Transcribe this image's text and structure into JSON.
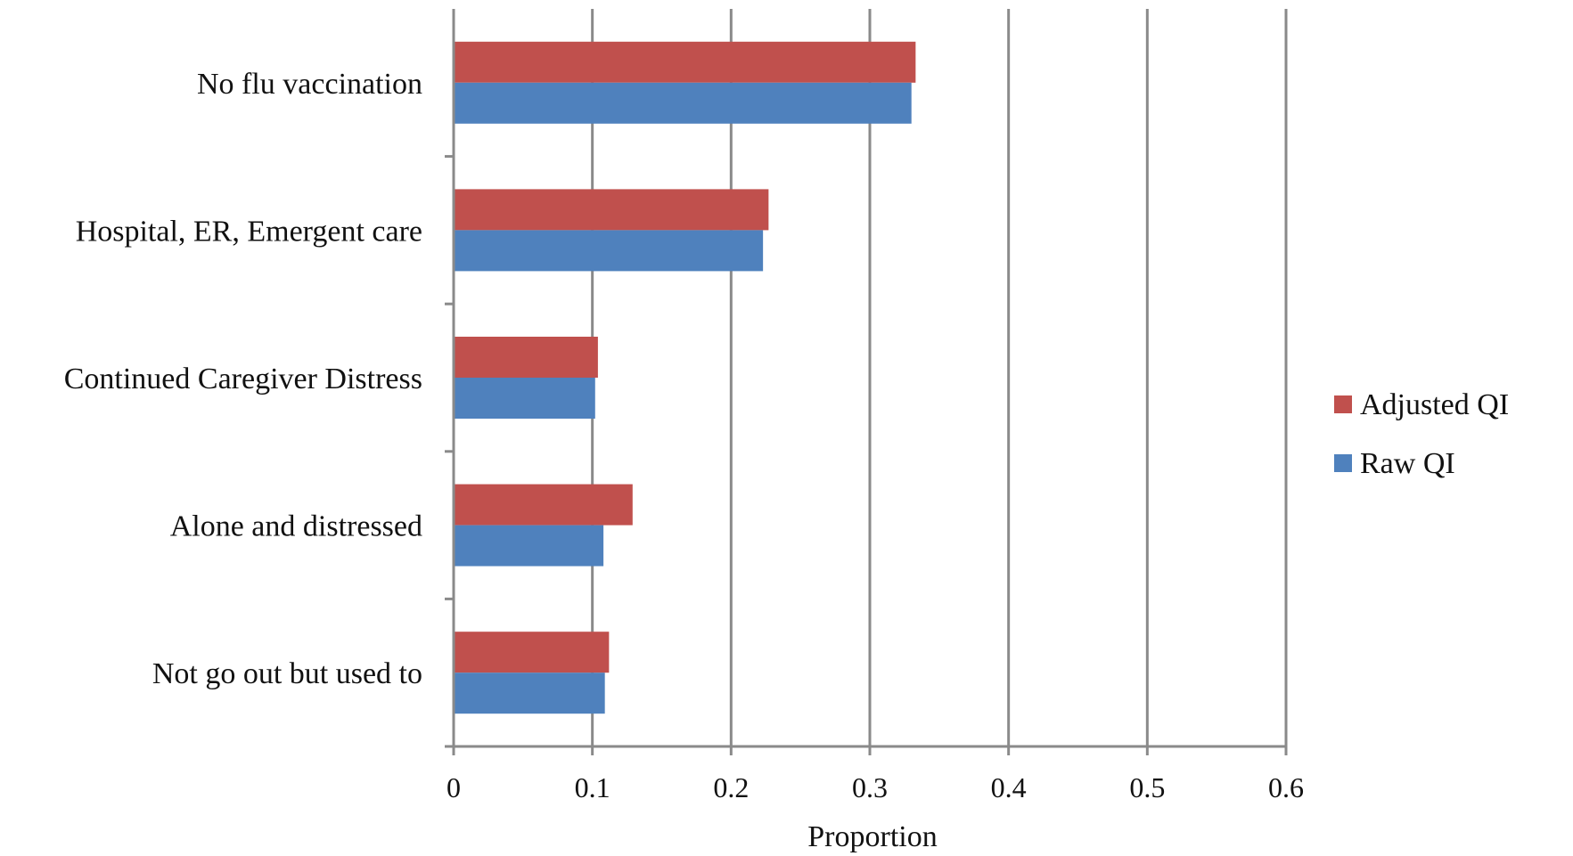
{
  "chart_data": {
    "type": "bar",
    "orientation": "horizontal",
    "categories": [
      "No flu vaccination",
      "Hospital, ER, Emergent care",
      "Continued Caregiver Distress",
      "Alone and distressed",
      "Not go out but used to"
    ],
    "series": [
      {
        "name": "Adjusted QI",
        "color": "#c0504d",
        "values": [
          0.333,
          0.227,
          0.104,
          0.129,
          0.112
        ]
      },
      {
        "name": "Raw QI",
        "color": "#4f81bd",
        "values": [
          0.33,
          0.223,
          0.102,
          0.108,
          0.109
        ]
      }
    ],
    "xlabel": "Proportion",
    "ylabel": "",
    "title": "",
    "xlim": [
      0,
      0.6
    ],
    "x_ticks": [
      "0",
      "0.1",
      "0.2",
      "0.3",
      "0.4",
      "0.5",
      "0.6"
    ],
    "grid": "vertical",
    "legend_position": "right"
  }
}
